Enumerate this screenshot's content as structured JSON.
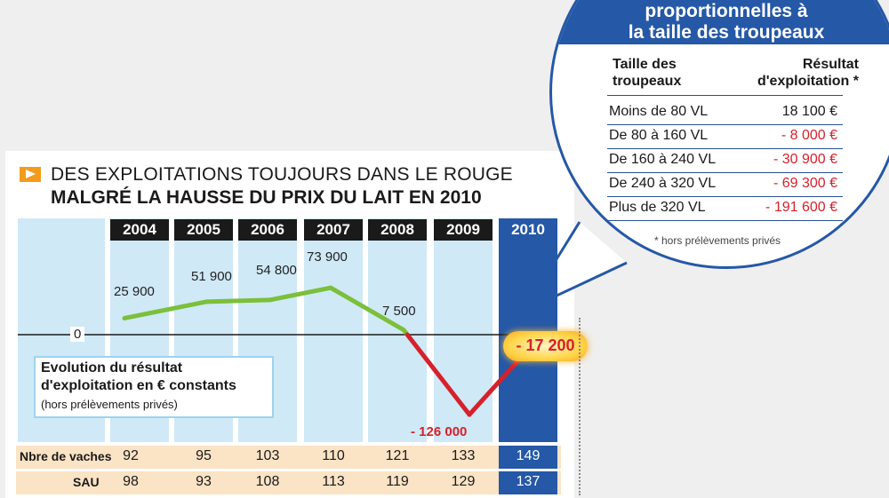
{
  "title_line1": "DES EXPLOITATIONS TOUJOURS DANS LE ROUGE",
  "title_line2": "MALGRÉ LA HAUSSE DU PRIX DU LAIT EN 2010",
  "legend": {
    "line1": "Evolution du résultat",
    "line2": "d'exploitation en € constants",
    "line3": "(hors prélèvements privés)"
  },
  "zero_label": "0",
  "colors": {
    "blue": "#2558a6",
    "light_blue": "#cfe9f7",
    "green": "#7cbf3a",
    "red": "#d6212a",
    "orange": "#f39b1c",
    "beige": "#fbe3c5"
  },
  "chart_data": {
    "type": "line",
    "title": "Evolution du résultat d'exploitation en € constants (hors prélèvements privés)",
    "categories": [
      "2004",
      "2005",
      "2006",
      "2007",
      "2008",
      "2009",
      "2010"
    ],
    "series": [
      {
        "name": "Résultat d'exploitation",
        "values": [
          25900,
          51900,
          54800,
          73900,
          7500,
          -126000,
          -17200
        ]
      }
    ],
    "value_labels": [
      "25 900",
      "51 900",
      "54 800",
      "73 900",
      "7 500",
      "- 126 000",
      "- 17 200"
    ],
    "ylim": [
      -126000,
      73900
    ]
  },
  "table": {
    "rows": [
      {
        "label": "Nbre de vaches",
        "values": [
          "92",
          "95",
          "103",
          "110",
          "121",
          "133",
          "149"
        ]
      },
      {
        "label": "SAU",
        "values": [
          "98",
          "93",
          "108",
          "113",
          "119",
          "129",
          "137"
        ]
      }
    ]
  },
  "bubble": {
    "title_line1": "proportionnelles à",
    "title_line2": "la taille des troupeaux",
    "col1_header_1": "Taille des",
    "col1_header_2": "troupeaux",
    "col2_header_1": "Résultat",
    "col2_header_2": "d'exploitation *",
    "rows": [
      {
        "size": "Moins de 80 VL",
        "result": "18 100 €",
        "negative": false
      },
      {
        "size": "De 80 à 160 VL",
        "result": "- 8 000 €",
        "negative": true
      },
      {
        "size": "De 160 à 240 VL",
        "result": "- 30 900 €",
        "negative": true
      },
      {
        "size": "De 240 à 320 VL",
        "result": "- 69 300 €",
        "negative": true
      },
      {
        "size": "Plus de 320 VL",
        "result": "- 191 600 €",
        "negative": true
      }
    ],
    "note": "* hors prélèvements privés"
  }
}
